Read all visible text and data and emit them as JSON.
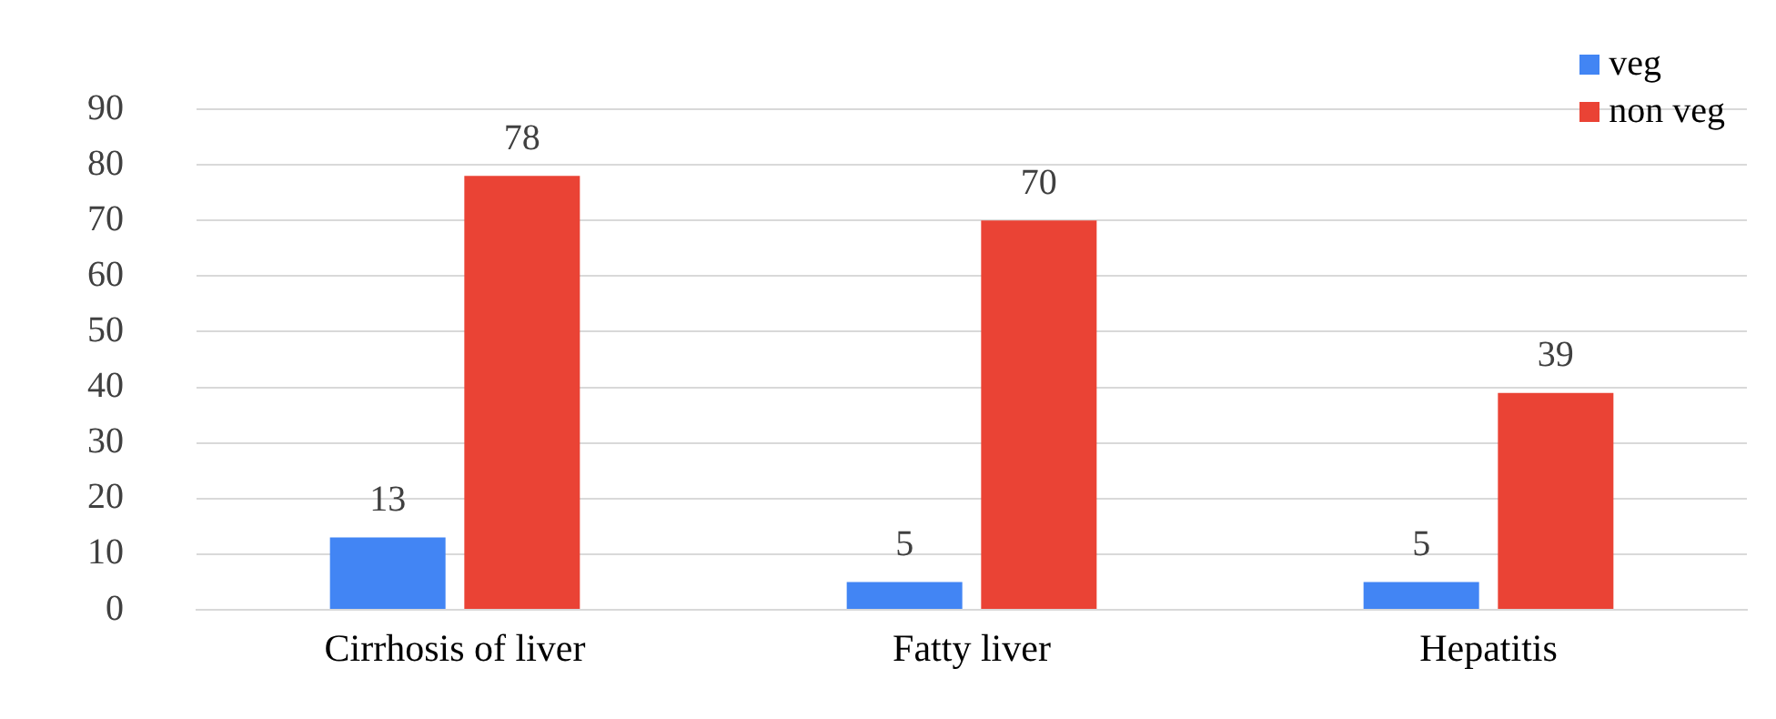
{
  "chart_data": {
    "type": "bar",
    "categories": [
      "Cirrhosis of liver",
      "Fatty liver",
      "Hepatitis"
    ],
    "series": [
      {
        "name": "veg",
        "color": "#4285f4",
        "values": [
          13,
          5,
          5
        ]
      },
      {
        "name": "non veg",
        "color": "#ea4335",
        "values": [
          78,
          70,
          39
        ]
      }
    ],
    "ylim": [
      0,
      90
    ],
    "yticks": [
      0,
      10,
      20,
      30,
      40,
      50,
      60,
      70,
      80,
      90
    ],
    "grid": "y",
    "legend": "top right",
    "data_labels": true
  }
}
